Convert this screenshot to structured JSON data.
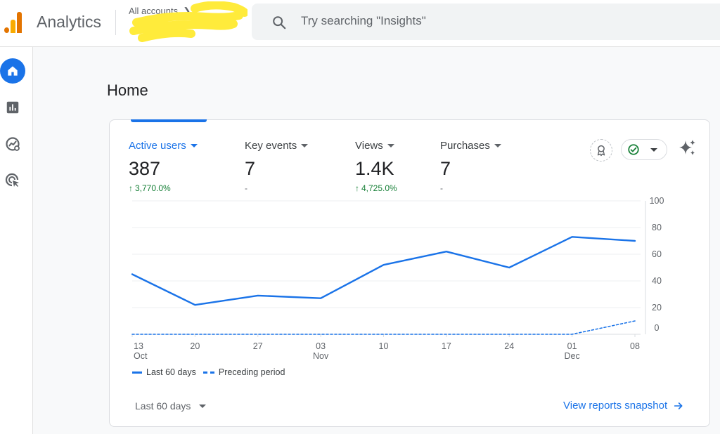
{
  "header": {
    "app_title": "Analytics",
    "breadcrumb": "All accounts",
    "account_name": "",
    "search_placeholder": "Try searching \"Insights\""
  },
  "rail": {
    "items": [
      {
        "name": "home",
        "icon": "home-icon",
        "active": true
      },
      {
        "name": "reports",
        "icon": "bar-chart-icon",
        "active": false
      },
      {
        "name": "explore",
        "icon": "explore-icon",
        "active": false
      },
      {
        "name": "advertising",
        "icon": "target-cursor-icon",
        "active": false
      }
    ]
  },
  "page": {
    "title": "Home"
  },
  "metrics": [
    {
      "label": "Active users",
      "value": "387",
      "change": "3,770.0%",
      "trend": "up",
      "active": true
    },
    {
      "label": "Key events",
      "value": "7",
      "change": "-",
      "trend": "none",
      "active": false
    },
    {
      "label": "Views",
      "value": "1.4K",
      "change": "4,725.0%",
      "trend": "up",
      "active": false
    },
    {
      "label": "Purchases",
      "value": "7",
      "change": "-",
      "trend": "none",
      "active": false
    }
  ],
  "chart_data": {
    "type": "line",
    "x": [
      "13 Oct",
      "20",
      "27",
      "03 Nov",
      "10",
      "17",
      "24",
      "01 Dec",
      "08"
    ],
    "x_ticks": [
      {
        "day": "13",
        "month": "Oct"
      },
      {
        "day": "20",
        "month": ""
      },
      {
        "day": "27",
        "month": ""
      },
      {
        "day": "03",
        "month": "Nov"
      },
      {
        "day": "10",
        "month": ""
      },
      {
        "day": "17",
        "month": ""
      },
      {
        "day": "24",
        "month": ""
      },
      {
        "day": "01",
        "month": "Dec"
      },
      {
        "day": "08",
        "month": ""
      }
    ],
    "series": [
      {
        "name": "Last 60 days",
        "style": "solid",
        "values": [
          45,
          22,
          29,
          27,
          52,
          62,
          50,
          73,
          70
        ]
      },
      {
        "name": "Preceding period",
        "style": "dashed",
        "values": [
          0,
          0,
          0,
          0,
          0,
          0,
          0,
          0,
          10
        ]
      }
    ],
    "y_ticks": [
      0,
      20,
      40,
      60,
      80,
      100
    ],
    "ylim": [
      0,
      100
    ],
    "grid": true,
    "legend_position": "bottom-left",
    "color": "#1a73e8"
  },
  "footer": {
    "range_label": "Last 60 days",
    "snapshot_link": "View reports snapshot"
  },
  "colors": {
    "accent": "#1a73e8",
    "positive": "#188038",
    "logo_orange": "#f9ab00",
    "logo_dark_orange": "#e37400"
  }
}
